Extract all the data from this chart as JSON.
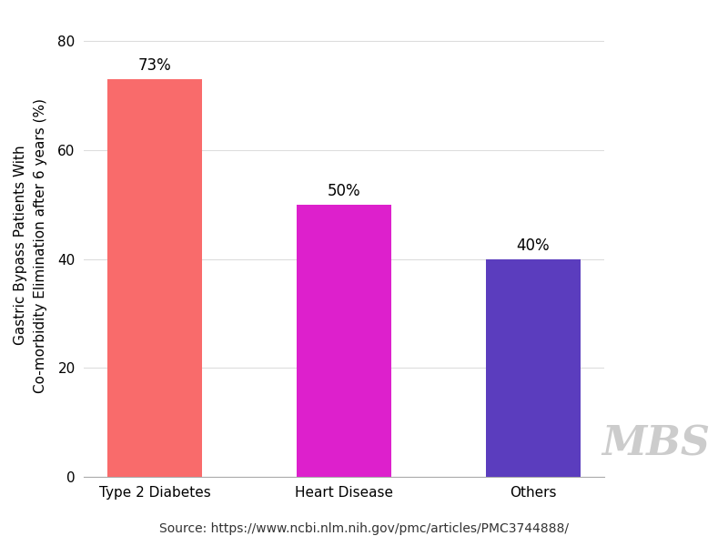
{
  "categories": [
    "Type 2 Diabetes",
    "Heart Disease",
    "Others"
  ],
  "values": [
    73,
    50,
    40
  ],
  "bar_colors": [
    "#F96B6B",
    "#DD20CC",
    "#5B3DBE"
  ],
  "value_labels": [
    "73%",
    "50%",
    "40%"
  ],
  "ylabel": "Gastric Bypass Patients With\nCo-morbidity Elimination after 6 years (%)",
  "ylim": [
    0,
    85
  ],
  "yticks": [
    0,
    20,
    40,
    60,
    80
  ],
  "source_text": "Source: https://www.ncbi.nlm.nih.gov/pmc/articles/PMC3744888/",
  "watermark": "MBS",
  "background_color": "#FFFFFF",
  "label_fontsize": 11,
  "ylabel_fontsize": 11,
  "tick_fontsize": 11,
  "source_fontsize": 10,
  "value_fontsize": 12,
  "watermark_fontsize": 32,
  "watermark_color": "#BBBBBB",
  "grid_color": "#DDDDDD",
  "bar_width": 0.5
}
